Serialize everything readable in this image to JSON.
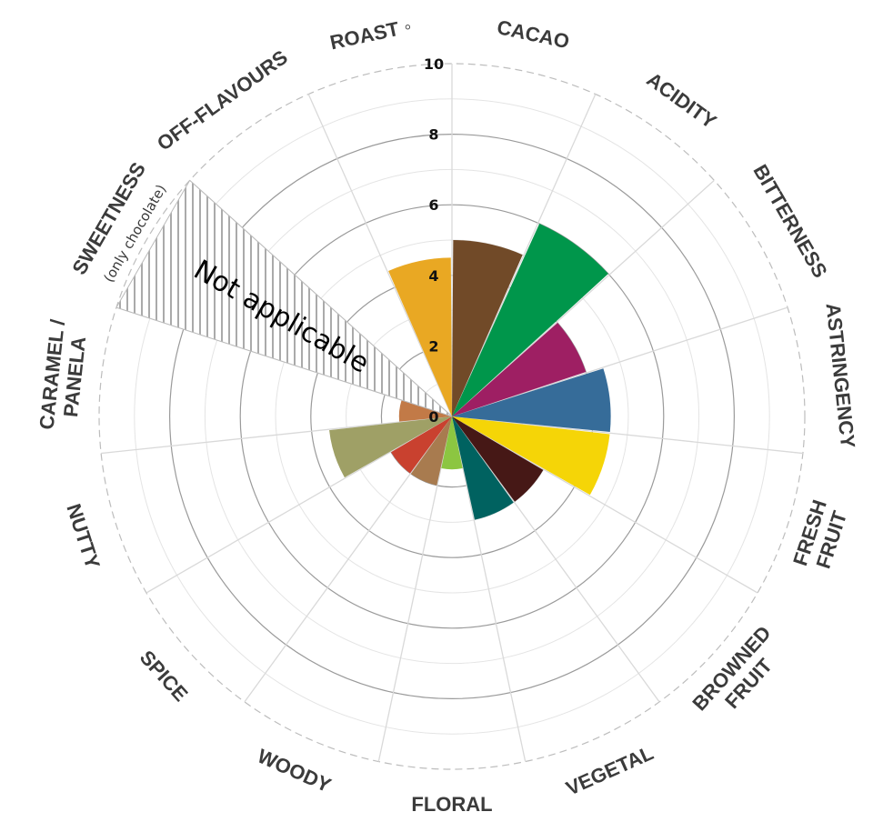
{
  "chart_data": {
    "type": "polar-bar",
    "title": "",
    "rlim": [
      0,
      10
    ],
    "r_ticks": [
      "0",
      "2",
      "4",
      "6",
      "8",
      "10"
    ],
    "grid": true,
    "categories": [
      {
        "name": "CACAO",
        "lines": [
          "CACAO"
        ],
        "value": 5,
        "color": "#714A28"
      },
      {
        "name": "ACIDITY",
        "lines": [
          "ACIDITY"
        ],
        "value": 6,
        "color": "#00964B"
      },
      {
        "name": "BITTERNESS",
        "lines": [
          "BITTERNESS"
        ],
        "value": 4,
        "color": "#9E1F63"
      },
      {
        "name": "ASTRINGENCY",
        "lines": [
          "ASTRINGENCY"
        ],
        "value": 4.5,
        "color": "#366C99"
      },
      {
        "name": "FRESH FRUIT",
        "lines": [
          "FRESH",
          "FRUIT"
        ],
        "value": 4.5,
        "color": "#F5D507"
      },
      {
        "name": "BROWNED FRUIT",
        "lines": [
          "BROWNED",
          "FRUIT"
        ],
        "value": 3,
        "color": "#461816"
      },
      {
        "name": "VEGETAL",
        "lines": [
          "VEGETAL"
        ],
        "value": 3,
        "color": "#006260"
      },
      {
        "name": "FLORAL",
        "lines": [
          "FLORAL"
        ],
        "value": 1.5,
        "color": "#8CC641"
      },
      {
        "name": "WOODY",
        "lines": [
          "WOODY"
        ],
        "value": 2,
        "color": "#A87B4F"
      },
      {
        "name": "SPICE",
        "lines": [
          "SPICE"
        ],
        "value": 2,
        "color": "#C9412F"
      },
      {
        "name": "NUTTY",
        "lines": [
          "NUTTY"
        ],
        "value": 3.5,
        "color": "#9FA066"
      },
      {
        "name": "CARAMEL / PANELA",
        "lines": [
          "CARAMEL /",
          "PANELA"
        ],
        "value": 1.5,
        "color": "#C27A47"
      },
      {
        "name": "SWEETNESS",
        "lines": [
          "SWEETNESS"
        ],
        "sub": "(only chocolate)",
        "value": null,
        "note": "Not applicable",
        "color": "#999999"
      },
      {
        "name": "OFF-FLAVOURS",
        "lines": [
          "OFF-FLAVOURS"
        ],
        "value": 0,
        "color": "#888888"
      },
      {
        "name": "ROAST",
        "lines": [
          "ROAST ◦"
        ],
        "value": 4.5,
        "color": "#E9A823"
      }
    ]
  }
}
